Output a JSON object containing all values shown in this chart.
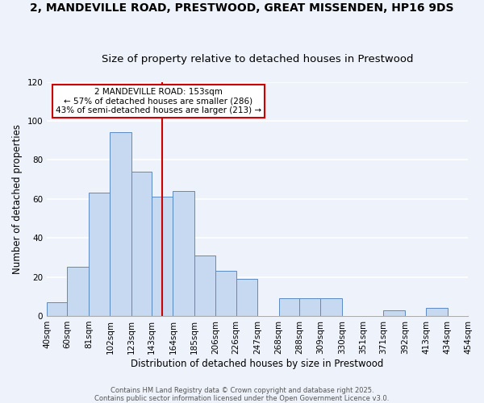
{
  "title": "2, MANDEVILLE ROAD, PRESTWOOD, GREAT MISSENDEN, HP16 9DS",
  "subtitle": "Size of property relative to detached houses in Prestwood",
  "xlabel": "Distribution of detached houses by size in Prestwood",
  "ylabel": "Number of detached properties",
  "bins": [
    40,
    60,
    81,
    102,
    123,
    143,
    164,
    185,
    206,
    226,
    247,
    268,
    288,
    309,
    330,
    351,
    371,
    392,
    413,
    434,
    454
  ],
  "counts": [
    7,
    25,
    63,
    94,
    74,
    61,
    64,
    31,
    23,
    19,
    0,
    9,
    9,
    9,
    0,
    0,
    3,
    0,
    4,
    0,
    1
  ],
  "bar_color": "#c6d9f0",
  "bar_edge_color": "#5b8ac4",
  "vline_x": 153,
  "vline_color": "#cc0000",
  "annotation_title": "2 MANDEVILLE ROAD: 153sqm",
  "annotation_line1": "← 57% of detached houses are smaller (286)",
  "annotation_line2": "43% of semi-detached houses are larger (213) →",
  "annotation_box_color": "#cc0000",
  "ylim": [
    0,
    120
  ],
  "yticks": [
    0,
    20,
    40,
    60,
    80,
    100,
    120
  ],
  "footer1": "Contains HM Land Registry data © Crown copyright and database right 2025.",
  "footer2": "Contains public sector information licensed under the Open Government Licence v3.0.",
  "background_color": "#eef2fa",
  "grid_color": "#ffffff",
  "title_fontsize": 10,
  "subtitle_fontsize": 9.5,
  "label_fontsize": 8.5,
  "tick_fontsize": 7.5,
  "annotation_fontsize": 7.5,
  "footer_fontsize": 6.0
}
